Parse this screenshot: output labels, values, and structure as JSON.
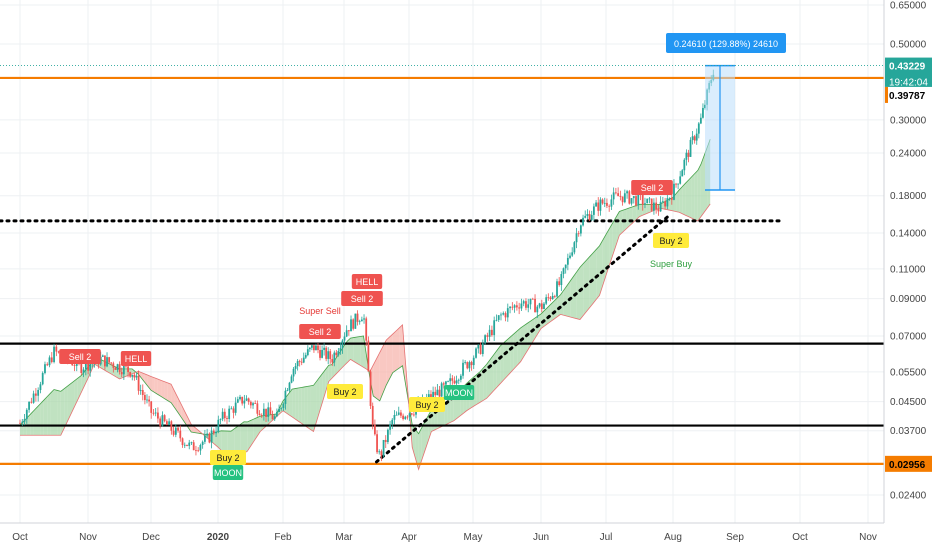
{
  "chart_data": {
    "type": "candlestick",
    "y_scale": "log",
    "ylim": [
      0.0215,
      0.66
    ],
    "y_ticks": [
      "0.65000",
      "0.50000",
      "0.43229",
      "0.39787",
      "0.30000",
      "0.24000",
      "0.18000",
      "0.14000",
      "0.11000",
      "0.09000",
      "0.07000",
      "0.05500",
      "0.04500",
      "0.03700",
      "0.02956",
      "0.02400"
    ],
    "x_ticks": [
      "Oct",
      "Nov",
      "Dec",
      "2020",
      "Feb",
      "Mar",
      "Apr",
      "May",
      "Jun",
      "Jul",
      "Aug",
      "Sep",
      "Oct",
      "Nov"
    ],
    "grid": true,
    "price_tags": {
      "current": {
        "price": "0.43229",
        "countdown": "19:42:04",
        "color": "#26a69a"
      },
      "resistance": {
        "price": "0.39787",
        "color": "#f57c00"
      },
      "support": {
        "price": "0.02956",
        "color": "#f57c00"
      }
    },
    "measure_label": "0.24610 (129.88%) 24610",
    "horizontal_lines": [
      {
        "price": 0.3978,
        "color": "#f57c00",
        "style": "solid"
      },
      {
        "price": 0.0665,
        "color": "#000000",
        "style": "solid"
      },
      {
        "price": 0.0383,
        "color": "#000000",
        "style": "solid"
      },
      {
        "price": 0.0296,
        "color": "#f57c00",
        "style": "solid"
      },
      {
        "price": 0.152,
        "color": "#000000",
        "style": "dotted"
      }
    ],
    "signals": [
      {
        "text": "Sell 2",
        "kind": "sell",
        "month": "Oct"
      },
      {
        "text": "HELL",
        "kind": "hell",
        "month": "Nov"
      },
      {
        "text": "Buy 2",
        "kind": "buy",
        "month": "Jan"
      },
      {
        "text": "MOON",
        "kind": "moon",
        "month": "Jan"
      },
      {
        "text": "Sell 2",
        "kind": "sell",
        "month": "Feb"
      },
      {
        "text": "Super Sell",
        "kind": "super-sell",
        "month": "Feb"
      },
      {
        "text": "Buy 2",
        "kind": "buy",
        "month": "Feb"
      },
      {
        "text": "Sell 2",
        "kind": "sell",
        "month": "Mar"
      },
      {
        "text": "HELL",
        "kind": "hell",
        "month": "Mar"
      },
      {
        "text": "Buy 2",
        "kind": "buy",
        "month": "Apr"
      },
      {
        "text": "MOON",
        "kind": "moon",
        "month": "Apr"
      },
      {
        "text": "Sell 2",
        "kind": "sell",
        "month": "Jul"
      },
      {
        "text": "Buy 2",
        "kind": "buy",
        "month": "Aug"
      },
      {
        "text": "Super Buy",
        "kind": "super-buy",
        "month": "Aug"
      }
    ],
    "colors": {
      "up": "#26a69a",
      "down": "#ef5350",
      "cloud_bull": "#a5d6a7",
      "cloud_bear": "#f7b1a8",
      "measure": "#2196f3"
    }
  }
}
